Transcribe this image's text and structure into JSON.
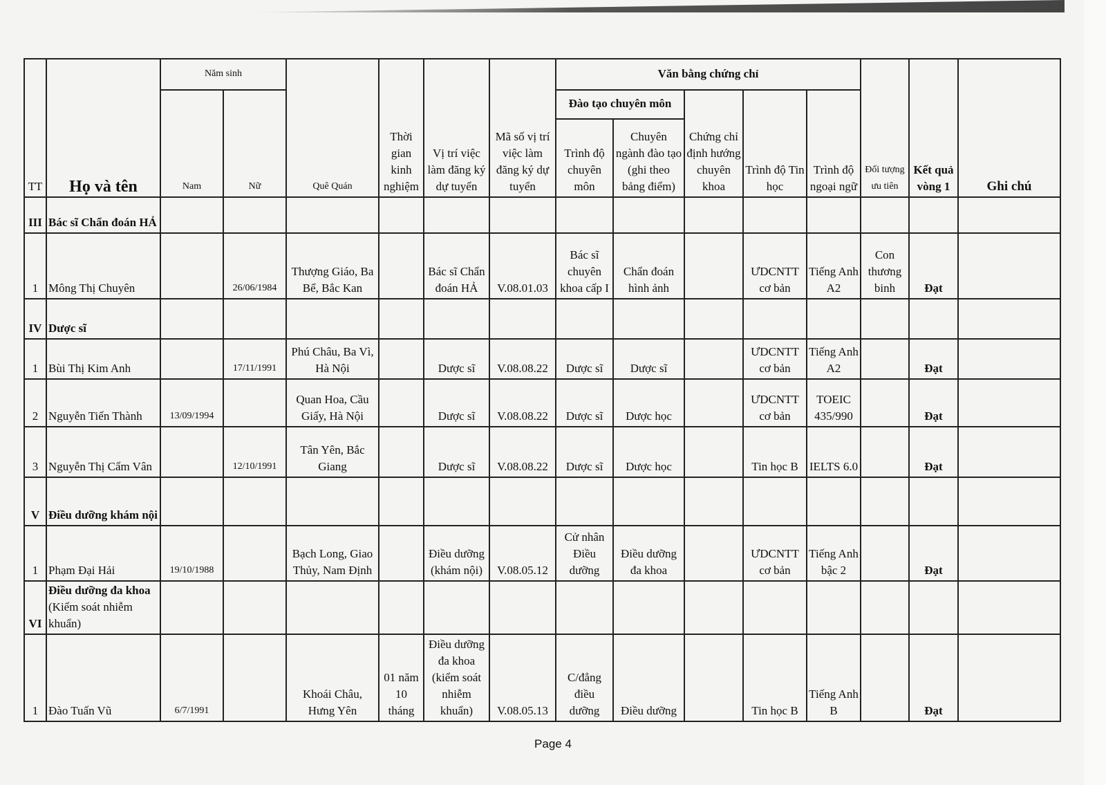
{
  "header": {
    "tt": "TT",
    "name": "Họ và tên",
    "birth_year": "Năm sinh",
    "male": "Nam",
    "female": "Nữ",
    "hometown": "Quê Quán",
    "experience": "Thời gian kinh nghiệm",
    "position": "Vị trí việc làm đăng ký dự tuyển",
    "position_code": "Mã số vị trí việc làm đăng ký dự tuyển",
    "certificates": "Văn bằng chứng chỉ",
    "professional_training": "Đào tạo chuyên môn",
    "professional_level": "Trình độ chuyên môn",
    "major": "Chuyên ngành đào tạo (ghi theo bảng điểm)",
    "specialty_cert": "Chứng chỉ định hướng chuyên khoa",
    "it_level": "Trình độ Tin học",
    "language_level": "Trình độ ngoại ngữ",
    "priority": "Đối tượng ưu tiên",
    "result": "Kết quả vòng 1",
    "note": "Ghi chú"
  },
  "sections": [
    {
      "roman": "III",
      "title": "Bác sĩ Chẩn đoán HẢ",
      "rows": [
        {
          "tt": "1",
          "name": "Mông Thị Chuyên",
          "male": "",
          "female": "26/06/1984",
          "hometown": "Thượng Giáo, Ba Bể, Bắc Kan",
          "experience": "",
          "position": "Bác sĩ Chẩn đoán HẢ",
          "code": "V.08.01.03",
          "level": "Bác sĩ chuyên khoa cấp I",
          "major": "Chẩn đoán hình ảnh",
          "cert": "",
          "it": "ƯDCNTT cơ bản",
          "lang": "Tiếng Anh A2",
          "priority": "Con thương binh",
          "result": "Đạt",
          "note": ""
        }
      ]
    },
    {
      "roman": "IV",
      "title": "Dược sĩ",
      "rows": [
        {
          "tt": "1",
          "name": "Bùi Thị Kim Anh",
          "male": "",
          "female": "17/11/1991",
          "hometown": "Phú Châu, Ba Vì, Hà Nội",
          "experience": "",
          "position": "Dược sĩ",
          "code": "V.08.08.22",
          "level": "Dược sĩ",
          "major": "Dược sĩ",
          "cert": "",
          "it": "ƯDCNTT cơ bản",
          "lang": "Tiếng Anh A2",
          "priority": "",
          "result": "Đạt",
          "note": ""
        },
        {
          "tt": "2",
          "name": "Nguyễn Tiến Thành",
          "male": "13/09/1994",
          "female": "",
          "hometown": "Quan Hoa, Cầu Giấy, Hà Nội",
          "experience": "",
          "position": "Dược sĩ",
          "code": "V.08.08.22",
          "level": "Dược sĩ",
          "major": "Dược học",
          "cert": "",
          "it": "ƯDCNTT cơ bản",
          "lang": "TOEIC 435/990",
          "priority": "",
          "result": "Đạt",
          "note": ""
        },
        {
          "tt": "3",
          "name": "Nguyễn Thị Cẩm Vân",
          "male": "",
          "female": "12/10/1991",
          "hometown": "Tân Yên, Bắc Giang",
          "experience": "",
          "position": "Dược sĩ",
          "code": "V.08.08.22",
          "level": "Dược sĩ",
          "major": "Dược học",
          "cert": "",
          "it": "Tin học B",
          "lang": "IELTS 6.0",
          "priority": "",
          "result": "Đạt",
          "note": ""
        }
      ]
    },
    {
      "roman": "V",
      "title": "Điều dưỡng khám nội",
      "rows": [
        {
          "tt": "1",
          "name": "Phạm Đại Hải",
          "male": "19/10/1988",
          "female": "",
          "hometown": "Bạch Long, Giao Thủy, Nam Định",
          "experience": "",
          "position": "Điều dưỡng (khám nội)",
          "code": "V.08.05.12",
          "level": "Cử nhân Điều dưỡng",
          "major": "Điều dưỡng đa khoa",
          "cert": "",
          "it": "ƯDCNTT cơ bản",
          "lang": "Tiếng Anh bậc 2",
          "priority": "",
          "result": "Đạt",
          "note": ""
        }
      ]
    },
    {
      "roman": "VI",
      "title_bold": "Điều dưỡng đa khoa",
      "title_rest": " (Kiểm soát nhiễm khuẩn)",
      "rows": [
        {
          "tt": "1",
          "name": "Đào Tuấn Vũ",
          "male": "6/7/1991",
          "female": "",
          "hometown": "Khoái Châu, Hưng Yên",
          "experience": "01 năm 10 tháng",
          "position": "Điều dưỡng đa khoa (kiểm soát nhiễm khuẩn)",
          "code": "V.08.05.13",
          "level": "C/đẳng điều dưỡng",
          "major": "Điều dưỡng",
          "cert": "",
          "it": "Tin học B",
          "lang": "Tiếng Anh B",
          "priority": "",
          "result": "Đạt",
          "note": ""
        }
      ]
    }
  ],
  "footer": {
    "page": "Page 4"
  }
}
